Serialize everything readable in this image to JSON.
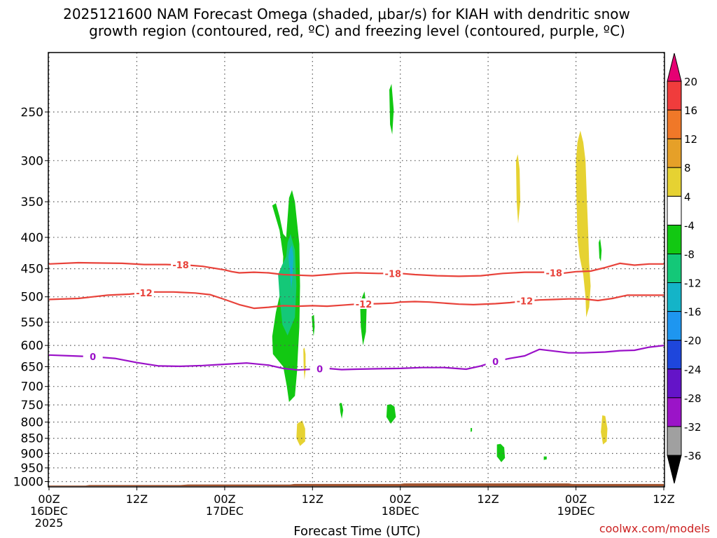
{
  "chart_data": {
    "type": "heatmap",
    "title_line1": "2025121600 NAM Forecast Omega (shaded, μbar/s) for KIAH with dendritic snow",
    "title_line2": "growth region (contoured, red, ºC) and freezing level (contoured, purple, ºC)",
    "xlabel": "Forecast Time (UTC)",
    "watermark": "coolwx.com/models",
    "x_range_hours": [
      0,
      84
    ],
    "y_range_hpa": [
      1020,
      200
    ],
    "y_ticks": [
      250,
      300,
      350,
      400,
      450,
      500,
      550,
      600,
      650,
      700,
      750,
      800,
      850,
      900,
      950,
      1000
    ],
    "x_ticks": [
      {
        "h": 0,
        "line1": "00Z",
        "line2": "16DEC",
        "line3": "2025"
      },
      {
        "h": 12,
        "line1": "12Z",
        "line2": "",
        "line3": ""
      },
      {
        "h": 24,
        "line1": "00Z",
        "line2": "17DEC",
        "line3": ""
      },
      {
        "h": 36,
        "line1": "12Z",
        "line2": "",
        "line3": ""
      },
      {
        "h": 48,
        "line1": "00Z",
        "line2": "18DEC",
        "line3": ""
      },
      {
        "h": 60,
        "line1": "12Z",
        "line2": "",
        "line3": ""
      },
      {
        "h": 72,
        "line1": "00Z",
        "line2": "19DEC",
        "line3": ""
      },
      {
        "h": 84,
        "line1": "12Z",
        "line2": "",
        "line3": ""
      }
    ],
    "colorbar": {
      "bins": [
        {
          "color": "#e60073"
        },
        {
          "color": "#f03c3c"
        },
        {
          "color": "#f07828"
        },
        {
          "color": "#e6a028"
        },
        {
          "color": "#e6d232"
        },
        {
          "color": "#ffffff"
        },
        {
          "color": "#12c812"
        },
        {
          "color": "#14c878"
        },
        {
          "color": "#14b4c8"
        },
        {
          "color": "#1e96f0"
        },
        {
          "color": "#1e46dc"
        },
        {
          "color": "#6414c8"
        },
        {
          "color": "#9b14c8"
        },
        {
          "color": "#a0a0a0"
        },
        {
          "color": "#000000"
        }
      ],
      "labels": [
        "20",
        "16",
        "12",
        "8",
        "4",
        "-4",
        "-8",
        "-12",
        "-16",
        "-20",
        "-24",
        "-28",
        "-32",
        "-36"
      ]
    },
    "series": [
      {
        "name": "-18",
        "color": "#e8423a",
        "points": [
          [
            0,
            442
          ],
          [
            4,
            440
          ],
          [
            10,
            441
          ],
          [
            13,
            443
          ],
          [
            16,
            443
          ],
          [
            19,
            444
          ],
          [
            21,
            446
          ],
          [
            22,
            448
          ],
          [
            24,
            452
          ],
          [
            25,
            455
          ],
          [
            26,
            457
          ],
          [
            28,
            456
          ],
          [
            30,
            457
          ],
          [
            32,
            460
          ],
          [
            34,
            461
          ],
          [
            36,
            462
          ],
          [
            38,
            460
          ],
          [
            40,
            458
          ],
          [
            42,
            457
          ],
          [
            45,
            458
          ],
          [
            48,
            458
          ],
          [
            50,
            460
          ],
          [
            53,
            462
          ],
          [
            56,
            463
          ],
          [
            59,
            462
          ],
          [
            62,
            458
          ],
          [
            65,
            456
          ],
          [
            68,
            456
          ],
          [
            70,
            458
          ],
          [
            72,
            455
          ],
          [
            74,
            454
          ],
          [
            76,
            448
          ],
          [
            78,
            441
          ],
          [
            80,
            444
          ],
          [
            82,
            442
          ],
          [
            84,
            442
          ]
        ],
        "labels": [
          {
            "h": 18,
            "text": "-18"
          },
          {
            "h": 47,
            "text": "-18"
          },
          {
            "h": 69,
            "text": "-18"
          }
        ]
      },
      {
        "name": "-12",
        "color": "#e8423a",
        "points": [
          [
            0,
            505
          ],
          [
            4,
            503
          ],
          [
            8,
            497
          ],
          [
            11,
            495
          ],
          [
            14,
            491
          ],
          [
            17,
            491
          ],
          [
            20,
            493
          ],
          [
            22,
            496
          ],
          [
            24,
            505
          ],
          [
            26,
            515
          ],
          [
            28,
            522
          ],
          [
            30,
            520
          ],
          [
            32,
            517
          ],
          [
            34,
            518
          ],
          [
            36,
            517
          ],
          [
            38,
            518
          ],
          [
            40,
            516
          ],
          [
            42,
            514
          ],
          [
            45,
            513
          ],
          [
            47,
            512
          ],
          [
            48,
            510
          ],
          [
            50,
            509
          ],
          [
            52,
            510
          ],
          [
            54,
            512
          ],
          [
            56,
            514
          ],
          [
            58,
            515
          ],
          [
            61,
            513
          ],
          [
            63,
            511
          ],
          [
            65,
            508
          ],
          [
            67,
            506
          ],
          [
            69,
            505
          ],
          [
            71,
            504
          ],
          [
            73,
            504
          ],
          [
            75,
            507
          ],
          [
            77,
            503
          ],
          [
            79,
            497
          ],
          [
            82,
            497
          ],
          [
            84,
            497
          ]
        ],
        "labels": [
          {
            "h": 13,
            "text": "-12"
          },
          {
            "h": 43,
            "text": "-12"
          },
          {
            "h": 65,
            "text": "-12"
          }
        ]
      },
      {
        "name": "0",
        "color": "#9a10c8",
        "points": [
          [
            0,
            622
          ],
          [
            3,
            624
          ],
          [
            6,
            626
          ],
          [
            9,
            630
          ],
          [
            12,
            640
          ],
          [
            15,
            648
          ],
          [
            18,
            649
          ],
          [
            21,
            647
          ],
          [
            24,
            644
          ],
          [
            27,
            641
          ],
          [
            30,
            646
          ],
          [
            32,
            654
          ],
          [
            34,
            658
          ],
          [
            36,
            656
          ],
          [
            38,
            654
          ],
          [
            40,
            657
          ],
          [
            42,
            656
          ],
          [
            45,
            655
          ],
          [
            48,
            654
          ],
          [
            51,
            652
          ],
          [
            54,
            652
          ],
          [
            57,
            656
          ],
          [
            59,
            648
          ],
          [
            61,
            637
          ],
          [
            63,
            630
          ],
          [
            65,
            624
          ],
          [
            67,
            609
          ],
          [
            69,
            613
          ],
          [
            71,
            617
          ],
          [
            73,
            617
          ],
          [
            76,
            615
          ],
          [
            78,
            612
          ],
          [
            80,
            611
          ],
          [
            82,
            604
          ],
          [
            84,
            600
          ]
        ],
        "labels": [
          {
            "h": 6,
            "text": "0"
          },
          {
            "h": 37,
            "text": "0"
          },
          {
            "h": 61,
            "text": "0"
          }
        ]
      }
    ],
    "shaded_regions": [
      {
        "color": "#12c812",
        "points": [
          [
            30.5,
            355
          ],
          [
            31.5,
            390
          ],
          [
            32,
            430
          ],
          [
            31.8,
            480
          ],
          [
            31,
            530
          ],
          [
            30.5,
            580
          ],
          [
            30.6,
            620
          ],
          [
            32,
            650
          ],
          [
            32.5,
            700
          ],
          [
            32.8,
            742
          ],
          [
            33.6,
            725
          ],
          [
            33.9,
            660
          ],
          [
            34,
            620
          ],
          [
            34.2,
            560
          ],
          [
            34.3,
            480
          ],
          [
            34.2,
            410
          ],
          [
            33.6,
            350
          ],
          [
            33.2,
            335
          ],
          [
            32.8,
            345
          ],
          [
            32.4,
            400
          ],
          [
            32,
            395
          ],
          [
            31.5,
            370
          ],
          [
            31,
            352
          ]
        ]
      },
      {
        "color": "#14c878",
        "points": [
          [
            31.3,
            460
          ],
          [
            31.5,
            500
          ],
          [
            31.9,
            555
          ],
          [
            32.6,
            578
          ],
          [
            33.6,
            540
          ],
          [
            33.8,
            480
          ],
          [
            33.6,
            420
          ],
          [
            33,
            395
          ],
          [
            32.6,
            408
          ],
          [
            32.4,
            430
          ],
          [
            31.8,
            445
          ]
        ]
      },
      {
        "color": "#14b4c8",
        "points": [
          [
            32.7,
            430
          ],
          [
            32.9,
            455
          ],
          [
            33.1,
            485
          ],
          [
            33.3,
            460
          ],
          [
            33.4,
            430
          ],
          [
            33.2,
            412
          ],
          [
            32.9,
            418
          ]
        ]
      },
      {
        "color": "#1e96f0",
        "points": [
          [
            33.05,
            445
          ],
          [
            33.1,
            460
          ],
          [
            33.2,
            448
          ]
        ]
      },
      {
        "color": "#12c812",
        "points": [
          [
            35.9,
            538
          ],
          [
            36,
            560
          ],
          [
            36.15,
            580
          ],
          [
            36.3,
            560
          ],
          [
            36.2,
            535
          ]
        ]
      },
      {
        "color": "#12c812",
        "points": [
          [
            42.5,
            510
          ],
          [
            42.6,
            560
          ],
          [
            42.9,
            600
          ],
          [
            43.3,
            570
          ],
          [
            43.4,
            520
          ],
          [
            43.1,
            490
          ],
          [
            42.8,
            500
          ]
        ]
      },
      {
        "color": "#12c812",
        "points": [
          [
            46.5,
            230
          ],
          [
            46.6,
            262
          ],
          [
            46.9,
            272
          ],
          [
            47.1,
            248
          ],
          [
            46.8,
            225
          ]
        ]
      },
      {
        "color": "#12c812",
        "points": [
          [
            39.7,
            745
          ],
          [
            39.8,
            770
          ],
          [
            40,
            790
          ],
          [
            40.2,
            765
          ],
          [
            40,
            745
          ]
        ]
      },
      {
        "color": "#12c812",
        "points": [
          [
            46.2,
            750
          ],
          [
            46.1,
            785
          ],
          [
            46.7,
            805
          ],
          [
            47.4,
            785
          ],
          [
            47.2,
            755
          ],
          [
            46.7,
            748
          ]
        ]
      },
      {
        "color": "#12c812",
        "points": [
          [
            57.6,
            818
          ],
          [
            57.6,
            830
          ],
          [
            57.8,
            828
          ],
          [
            57.8,
            818
          ]
        ]
      },
      {
        "color": "#12c812",
        "points": [
          [
            61.2,
            870
          ],
          [
            61.2,
            910
          ],
          [
            61.8,
            930
          ],
          [
            62.3,
            915
          ],
          [
            62.2,
            880
          ],
          [
            61.7,
            868
          ]
        ]
      },
      {
        "color": "#12c812",
        "points": [
          [
            67.6,
            910
          ],
          [
            67.6,
            922
          ],
          [
            68,
            920
          ],
          [
            68,
            910
          ]
        ]
      },
      {
        "color": "#12c812",
        "points": [
          [
            75.1,
            408
          ],
          [
            75.2,
            432
          ],
          [
            75.4,
            438
          ],
          [
            75.5,
            420
          ],
          [
            75.3,
            402
          ]
        ]
      },
      {
        "color": "#e6d232",
        "points": [
          [
            34.75,
            608
          ],
          [
            34.8,
            650
          ],
          [
            34.9,
            683
          ],
          [
            35.05,
            660
          ],
          [
            35.05,
            620
          ],
          [
            34.9,
            605
          ]
        ]
      },
      {
        "color": "#e6d232",
        "points": [
          [
            33.9,
            805
          ],
          [
            33.8,
            850
          ],
          [
            34.3,
            875
          ],
          [
            35,
            860
          ],
          [
            35,
            820
          ],
          [
            34.6,
            795
          ]
        ]
      },
      {
        "color": "#e6d232",
        "points": [
          [
            63.8,
            300
          ],
          [
            63.9,
            350
          ],
          [
            64.1,
            380
          ],
          [
            64.4,
            350
          ],
          [
            64.3,
            310
          ],
          [
            64.05,
            293
          ]
        ]
      },
      {
        "color": "#e6d232",
        "points": [
          [
            72,
            320
          ],
          [
            72.2,
            400
          ],
          [
            72.5,
            430
          ],
          [
            73,
            460
          ],
          [
            73.3,
            500
          ],
          [
            73.4,
            540
          ],
          [
            73.8,
            520
          ],
          [
            74,
            480
          ],
          [
            73.8,
            440
          ],
          [
            73.7,
            400
          ],
          [
            73.5,
            350
          ],
          [
            73.3,
            300
          ],
          [
            73,
            280
          ],
          [
            72.6,
            268
          ],
          [
            72.2,
            280
          ],
          [
            72,
            300
          ]
        ]
      },
      {
        "color": "#e6d232",
        "points": [
          [
            75.6,
            780
          ],
          [
            75.4,
            830
          ],
          [
            75.7,
            870
          ],
          [
            76.2,
            860
          ],
          [
            76.3,
            820
          ],
          [
            76,
            782
          ]
        ]
      }
    ],
    "terrain": {
      "color": "#a0522d",
      "top_hpa": [
        [
          0,
          1015
        ],
        [
          5,
          1015
        ],
        [
          5.5,
          1013
        ],
        [
          18,
          1013
        ],
        [
          19,
          1011
        ],
        [
          33,
          1011
        ],
        [
          33.5,
          1009
        ],
        [
          48,
          1009
        ],
        [
          48.5,
          1007
        ],
        [
          71,
          1007
        ],
        [
          71.5,
          1009
        ],
        [
          84,
          1009
        ]
      ]
    }
  }
}
